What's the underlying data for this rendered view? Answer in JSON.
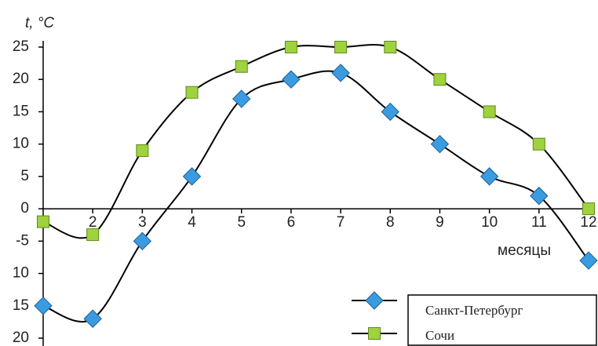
{
  "chart_data": {
    "type": "line",
    "y_label": "t, °C",
    "x_label": "месяцы",
    "x": [
      1,
      2,
      3,
      4,
      5,
      6,
      7,
      8,
      9,
      10,
      11,
      12
    ],
    "series": [
      {
        "name": "Санкт-Петербург",
        "color": "#3a9be0",
        "marker": "diamond",
        "values": [
          -15,
          -17,
          -5,
          5,
          17,
          20,
          21,
          15,
          10,
          5,
          2,
          -8
        ]
      },
      {
        "name": "Сочи",
        "color": "#9fd23c",
        "marker": "square",
        "values": [
          -2,
          -4,
          9,
          18,
          22,
          25,
          25,
          25,
          20,
          15,
          10,
          0
        ]
      }
    ],
    "line_color": "#000000",
    "smooth": true,
    "xlim": [
      1,
      12
    ],
    "xticks": [
      2,
      3,
      4,
      5,
      6,
      7,
      8,
      9,
      10,
      11,
      12
    ],
    "ylim": [
      -20,
      25
    ],
    "yticks": [
      25,
      20,
      15,
      10,
      5,
      0,
      -5,
      {
        "value": -10,
        "label": "10"
      },
      {
        "value": -15,
        "label": "15"
      },
      {
        "value": -20,
        "label": "20"
      }
    ],
    "legend": "lower right"
  }
}
